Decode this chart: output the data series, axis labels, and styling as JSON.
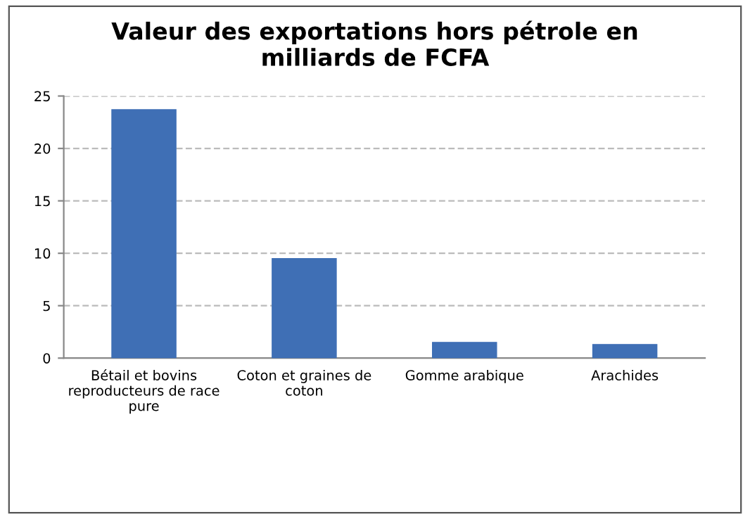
{
  "chart_data": {
    "type": "bar",
    "title": "Valeur des exportations hors pétrole en\nmilliards de FCFA",
    "categories": [
      "Bétail et bovins\nreproducteurs de race\npure",
      "Coton et graines de\ncoton",
      "Gomme arabique",
      "Arachides"
    ],
    "values": [
      23.7,
      9.5,
      1.5,
      1.3
    ],
    "color": "#3f6fb5",
    "ylim": [
      0,
      25
    ],
    "yticks": [
      0,
      5,
      10,
      15,
      20,
      25
    ],
    "grid": "y",
    "legend": false
  }
}
